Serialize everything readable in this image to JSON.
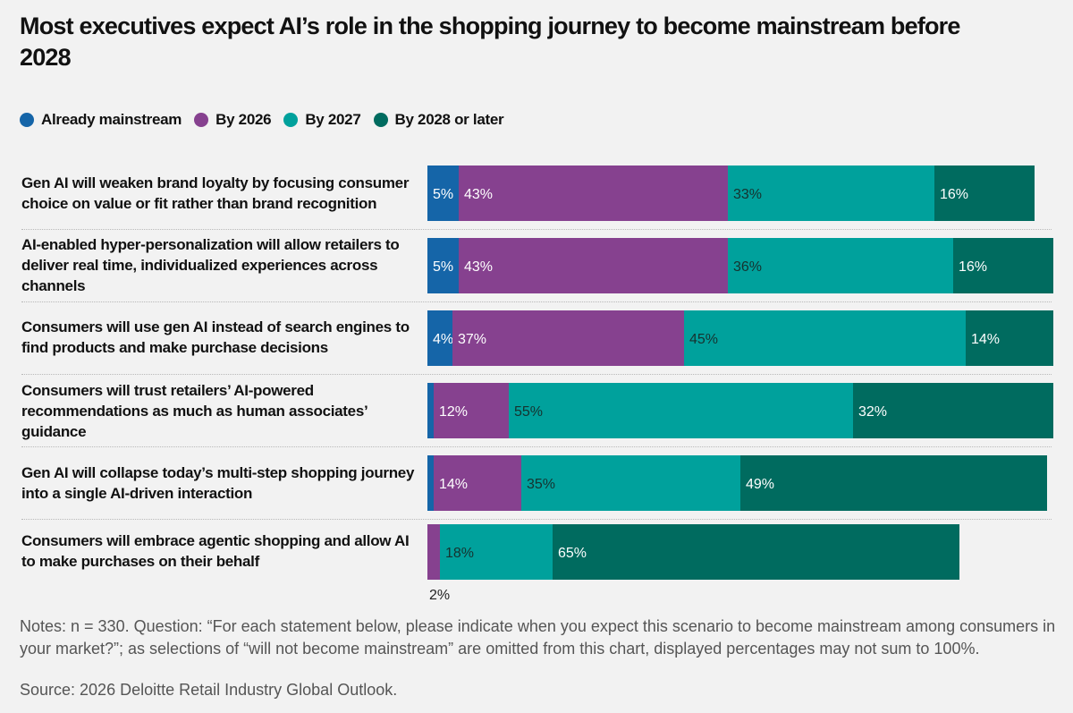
{
  "title": "Most executives expect AI’s role in the shopping journey to become mainstream before 2028",
  "legend": [
    {
      "label": "Already mainstream",
      "color": "#1565a8"
    },
    {
      "label": "By 2026",
      "color": "#86418f"
    },
    {
      "label": "By 2027",
      "color": "#00a19c"
    },
    {
      "label": "By 2028 or later",
      "color": "#006b5f"
    }
  ],
  "chart_data": {
    "type": "bar",
    "orientation": "horizontal",
    "stacked": true,
    "categories": [
      "Gen AI will weaken brand loyalty by focusing consumer choice on value or fit rather than brand recognition",
      "AI-enabled hyper-personalization will allow retailers to deliver real time, individualized experiences across channels",
      "Consumers will use gen AI instead of search engines to find products and make purchase decisions",
      "Consumers will trust retailers’ AI-powered recommendations as much as human associates’ guidance",
      "Gen AI will collapse today’s multi-step shopping journey into a single AI-driven interaction",
      "Consumers will embrace agentic shopping and allow AI to make purchases on their behalf"
    ],
    "series": [
      {
        "name": "Already mainstream",
        "values": [
          5,
          5,
          4,
          1,
          1,
          0
        ],
        "labels": [
          "5%",
          "5%",
          "4%",
          "",
          "",
          ""
        ]
      },
      {
        "name": "By 2026",
        "values": [
          43,
          43,
          37,
          12,
          14,
          2
        ],
        "labels": [
          "43%",
          "43%",
          "37%",
          "12%",
          "14%",
          "2%"
        ]
      },
      {
        "name": "By 2027",
        "values": [
          33,
          36,
          45,
          55,
          35,
          18
        ],
        "labels": [
          "33%",
          "36%",
          "45%",
          "55%",
          "35%",
          "18%"
        ]
      },
      {
        "name": "By 2028 or later",
        "values": [
          16,
          16,
          14,
          32,
          49,
          65
        ],
        "labels": [
          "16%",
          "16%",
          "14%",
          "32%",
          "49%",
          "65%"
        ]
      }
    ],
    "xlim": [
      0,
      100
    ],
    "units": "%"
  },
  "notes": "Notes: n = 330. Question: “For each statement below, please indicate when you expect this scenario to become mainstream among consumers in your market?”; as selections of “will not become mainstream” are omitted from this chart, displayed percentages may not sum to 100%.",
  "source": "Source: 2026 Deloitte Retail Industry Global Outlook."
}
